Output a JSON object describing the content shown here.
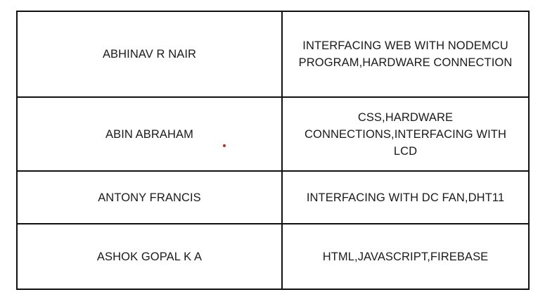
{
  "table": {
    "rows": [
      {
        "name": "ABHINAV R NAIR",
        "task": "INTERFACING WEB WITH NODEMCU PROGRAM,HARDWARE CONNECTION"
      },
      {
        "name": "ABIN ABRAHAM",
        "task": "CSS,HARDWARE CONNECTIONS,INTERFACING WITH LCD"
      },
      {
        "name": "ANTONY FRANCIS",
        "task": "INTERFACING WITH DC FAN,DHT11"
      },
      {
        "name": "ASHOK GOPAL K A",
        "task": "HTML,JAVASCRIPT,FIREBASE"
      }
    ]
  },
  "colors": {
    "border": "#111111",
    "text": "#1a1a1a",
    "marker_dot": "#d42020"
  }
}
